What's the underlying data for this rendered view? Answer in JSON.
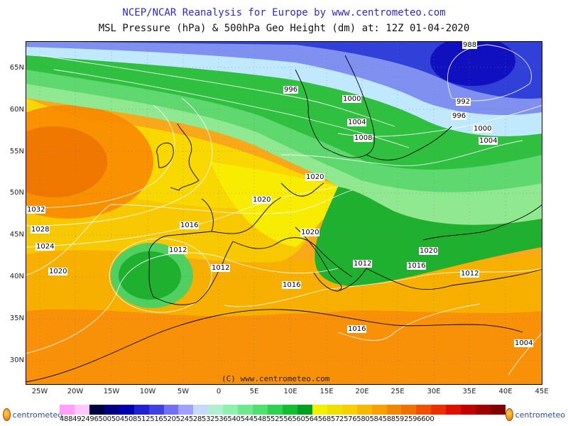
{
  "title": "NCEP/NCAR Reanalysis for Europe by www.centrometeo.com",
  "subtitle": "MSL Pressure (hPa) & 500hPa Geo Height (dm) at: 12Z 01-04-2020",
  "copyright": "(C) www.centrometeo.com",
  "lat_labels": [
    "65N",
    "60N",
    "55N",
    "50N",
    "45N",
    "40N",
    "35N",
    "30N"
  ],
  "lon_labels": [
    "25W",
    "20W",
    "15W",
    "10W",
    "5W",
    "0",
    "5E",
    "10E",
    "15E",
    "20E",
    "25E",
    "30E",
    "35E",
    "40E",
    "45E"
  ],
  "isobar_labels": [
    {
      "text": "996",
      "id": "iso-996-a"
    },
    {
      "text": "1000",
      "id": "iso-1000-a"
    },
    {
      "text": "1004",
      "id": "iso-1004-a"
    },
    {
      "text": "1008",
      "id": "iso-1008-a"
    },
    {
      "text": "992",
      "id": "iso-992"
    },
    {
      "text": "996",
      "id": "iso-996-b"
    },
    {
      "text": "1000",
      "id": "iso-1000-b"
    },
    {
      "text": "1004",
      "id": "iso-1004-b"
    },
    {
      "text": "1020",
      "id": "iso-1020-a"
    },
    {
      "text": "1020",
      "id": "iso-1020-b"
    },
    {
      "text": "1032",
      "id": "iso-1032"
    },
    {
      "text": "1028",
      "id": "iso-1028"
    },
    {
      "text": "1024",
      "id": "iso-1024"
    },
    {
      "text": "1020",
      "id": "iso-1020-c"
    },
    {
      "text": "1016",
      "id": "iso-1016-a"
    },
    {
      "text": "1012",
      "id": "iso-1012-a"
    },
    {
      "text": "1012",
      "id": "iso-1012-b"
    },
    {
      "text": "1016",
      "id": "iso-1016-b"
    },
    {
      "text": "1020",
      "id": "iso-1020-d"
    },
    {
      "text": "1012",
      "id": "iso-1012-c"
    },
    {
      "text": "1016",
      "id": "iso-1016-c"
    },
    {
      "text": "1020",
      "id": "iso-1020-e"
    },
    {
      "text": "1012",
      "id": "iso-1012-d"
    },
    {
      "text": "1016",
      "id": "iso-1016-d"
    },
    {
      "text": "1004",
      "id": "iso-1004-c"
    },
    {
      "text": "988",
      "id": "iso-988"
    }
  ],
  "scale_labels": "488492496500504508512516520524528532536540544548552556560564568572576580584588592596600",
  "scale_colors": [
    "#ffa0ff",
    "#ffc8ff",
    "#000040",
    "#000080",
    "#0000b0",
    "#2020d0",
    "#4040e0",
    "#7070f0",
    "#a0a0ff",
    "#c8d8ff",
    "#b0f0d0",
    "#90f0b0",
    "#70e890",
    "#50e070",
    "#30d050",
    "#10c030",
    "#00a020",
    "#f0f000",
    "#f0e000",
    "#f8d000",
    "#f8b800",
    "#f8a000",
    "#f08800",
    "#f07000",
    "#f05000",
    "#e83000",
    "#e01000",
    "#c00000",
    "#a00000",
    "#800000"
  ],
  "logo_text": "centrometeo",
  "colors": {
    "title_blue": "#2a2ad0",
    "high_orange": "#f89010",
    "mid_yellow": "#f8e000",
    "low_green": "#20b830",
    "low_blue": "#2020d0"
  }
}
